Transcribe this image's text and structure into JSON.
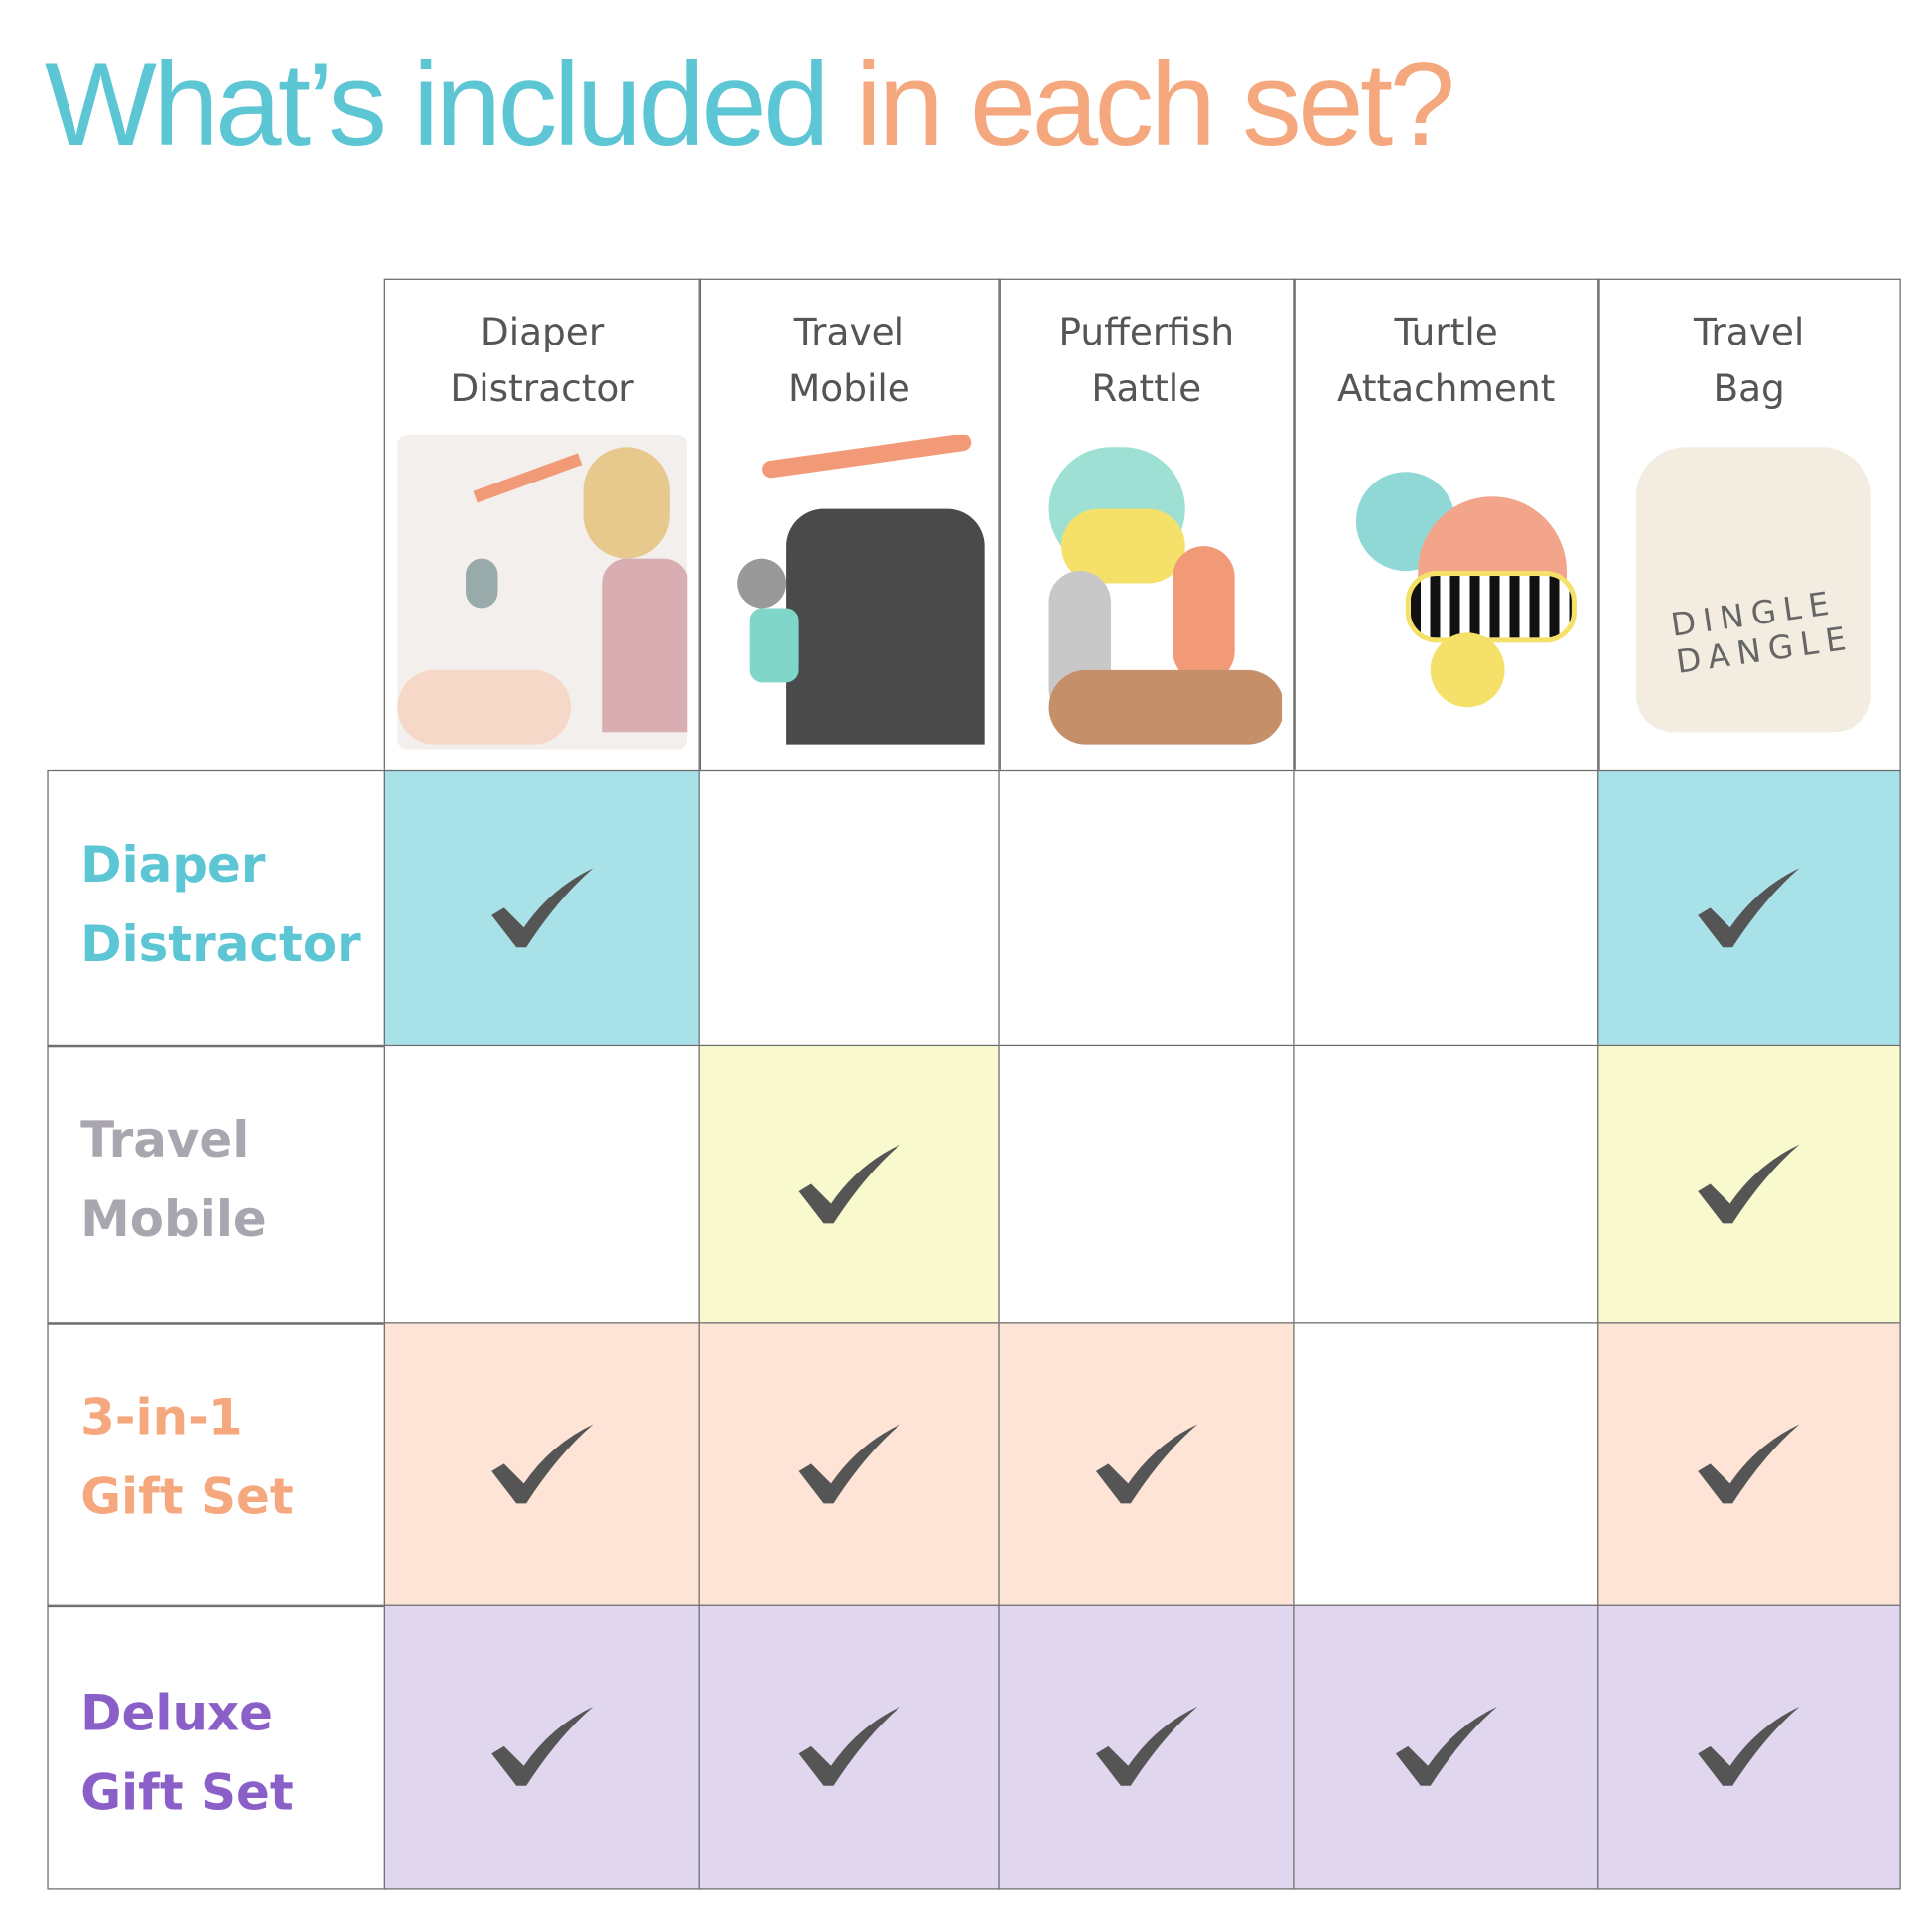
{
  "title": {
    "part1": "What’s included",
    "part2": "in each set?"
  },
  "colors": {
    "teal": "#5CC6D4",
    "orange": "#F5A77D",
    "gray": "#A9A6B0",
    "purple": "#8A5FC8"
  },
  "columns": [
    {
      "label_line1": "Diaper",
      "label_line2": "Distractor",
      "image": "woman-with-baby-and-mobile"
    },
    {
      "label_line1": "Travel",
      "label_line2": "Mobile",
      "image": "stroller-with-mobile"
    },
    {
      "label_line1": "Pufferfish",
      "label_line2": "Rattle",
      "image": "pufferfish-rattle"
    },
    {
      "label_line1": "Turtle",
      "label_line2": "Attachment",
      "image": "turtle-toy"
    },
    {
      "label_line1": "Travel",
      "label_line2": "Bag",
      "image": "dingle-dangle-bag",
      "bag_text": "DINGLE DANGLE"
    }
  ],
  "rows": [
    {
      "line1": "Diaper",
      "line2": "Distractor",
      "color": "#5CC6D4",
      "fill": "#A8E1E8",
      "included": [
        true,
        false,
        false,
        false,
        true
      ]
    },
    {
      "line1": "Travel",
      "line2": "Mobile",
      "color": "#A9A6B0",
      "fill": "#F8FACD",
      "included": [
        false,
        true,
        false,
        false,
        true
      ]
    },
    {
      "line1": "3-in-1",
      "line2": "Gift Set",
      "color": "#F5A77D",
      "fill": "#FDE4D6",
      "included": [
        true,
        true,
        true,
        false,
        true
      ]
    },
    {
      "line1": "Deluxe",
      "line2": "Gift Set",
      "color": "#8A5FC8",
      "fill": "#E0D7EE",
      "included": [
        true,
        true,
        true,
        true,
        true
      ]
    }
  ]
}
